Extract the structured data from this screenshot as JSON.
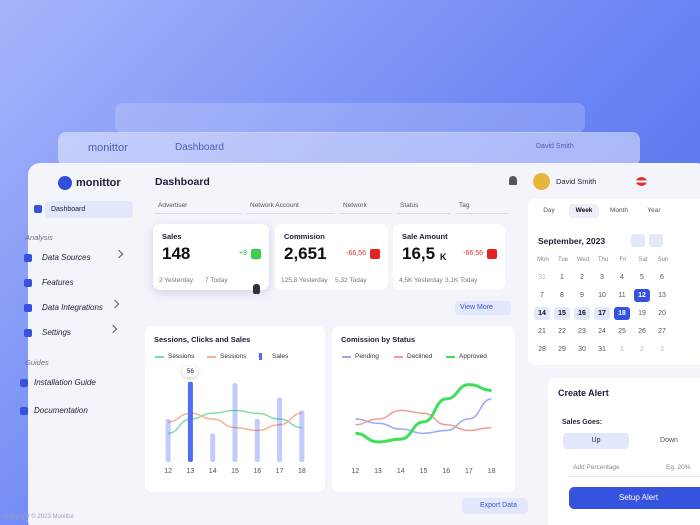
{
  "brand": "monittor",
  "copyright": "Copyright © 2023 Monittor",
  "header": {
    "title": "Dashboard",
    "user": "David Smith"
  },
  "sidebar": {
    "active": "Dashboard",
    "sections": [
      {
        "title": "Analysis",
        "items": [
          "Data Sources",
          "Features",
          "Data Integrations",
          "Settings"
        ]
      },
      {
        "title": "Guides",
        "items": [
          "Installation Guide",
          "Documentation"
        ]
      }
    ]
  },
  "filters": [
    "Advertiser",
    "Network Account",
    "Network",
    "Status",
    "Tag"
  ],
  "stats": [
    {
      "label": "Sales",
      "value": "148",
      "unit": "",
      "change": "+9",
      "yesterday": "2 Yesterday",
      "today": "7 Today"
    },
    {
      "label": "Commision",
      "value": "2,651",
      "unit": "",
      "change": "-66,56",
      "yesterday": "125,8 Yesterday",
      "today": "5,32 Today"
    },
    {
      "label": "Sale Amount",
      "value": "16,5",
      "unit": "K",
      "change": "-66,56",
      "yesterday": "4,5K Yesterday",
      "today": "3,1K Today"
    }
  ],
  "view_more": "View More",
  "export": "Export Data",
  "charts": [
    {
      "type": "bar",
      "title": "Sessions, Clicks and Sales",
      "categories": [
        "12",
        "13",
        "14",
        "15",
        "16",
        "17",
        "18"
      ],
      "ylim": [
        0,
        60
      ],
      "series": [
        {
          "name": "Sessions",
          "color": "#7ee0a0",
          "type": "line",
          "values": [
            20,
            30,
            34,
            36,
            34,
            30,
            24
          ]
        },
        {
          "name": "Sessions",
          "color": "#f7b28a",
          "type": "line",
          "values": [
            28,
            34,
            30,
            24,
            22,
            26,
            34
          ]
        },
        {
          "name": "Sales",
          "color": "#4f6ef7",
          "type": "bar",
          "values": [
            30,
            56,
            20,
            55,
            30,
            45,
            36
          ]
        }
      ]
    },
    {
      "type": "line",
      "title": "Comission by Status",
      "categories": [
        "12",
        "13",
        "14",
        "15",
        "16",
        "17",
        "18"
      ],
      "ylim": [
        0,
        60
      ],
      "series": [
        {
          "name": "Pending",
          "color": "#9aa8f5",
          "values": [
            30,
            27,
            23,
            20,
            22,
            30,
            44
          ]
        },
        {
          "name": "Declined",
          "color": "#f39a9a",
          "values": [
            26,
            30,
            36,
            34,
            26,
            22,
            24
          ]
        },
        {
          "name": "Approved",
          "color": "#3ee05a",
          "values": [
            20,
            14,
            16,
            28,
            44,
            54,
            50
          ]
        }
      ]
    }
  ],
  "calendar": {
    "tabs": [
      "Day",
      "Week",
      "Month",
      "Year"
    ],
    "active": "Week",
    "month": "September, 2023",
    "weekdays": [
      "Mon",
      "Tue",
      "Wed",
      "Thu",
      "Fri",
      "Sat",
      "Sun"
    ],
    "days": [
      [
        "31",
        "1",
        "2",
        "3",
        "4",
        "5",
        "6"
      ],
      [
        "7",
        "8",
        "9",
        "10",
        "11",
        "12",
        "13"
      ],
      [
        "14",
        "15",
        "16",
        "17",
        "18",
        "19",
        "20"
      ],
      [
        "21",
        "22",
        "23",
        "24",
        "25",
        "26",
        "27"
      ],
      [
        "28",
        "29",
        "30",
        "31",
        "1",
        "2",
        "3"
      ]
    ]
  },
  "alert": {
    "title": "Create Alert",
    "label": "Sales Goes:",
    "up": "Up",
    "down": "Down",
    "field": "Add Percentage",
    "placeholder": "Eg. 20%",
    "button": "Setup Alert"
  }
}
